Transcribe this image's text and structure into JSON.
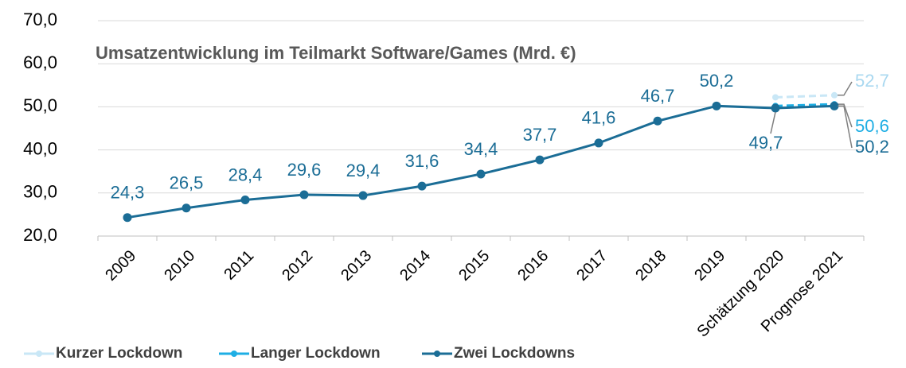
{
  "chart_data": {
    "type": "line",
    "title": "Umsatzentwicklung im Teilmarkt Software/Games (Mrd. €)",
    "categories": [
      "2009",
      "2010",
      "2011",
      "2012",
      "2013",
      "2014",
      "2015",
      "2016",
      "2017",
      "2018",
      "2019",
      "Schätzung 2020",
      "Prognose 2021"
    ],
    "series": [
      {
        "name": "Kurzer Lockdown",
        "color": "#c9e7f6",
        "dashed": true,
        "values": [
          null,
          null,
          null,
          null,
          null,
          null,
          null,
          null,
          null,
          null,
          null,
          52.2,
          52.7
        ],
        "value_labels": [
          null,
          null,
          null,
          null,
          null,
          null,
          null,
          null,
          null,
          null,
          null,
          null,
          "52,7"
        ]
      },
      {
        "name": "Langer Lockdown",
        "color": "#1eaee4",
        "dashed": true,
        "values": [
          null,
          null,
          null,
          null,
          null,
          null,
          null,
          null,
          null,
          null,
          null,
          50.2,
          50.6
        ],
        "value_labels": [
          null,
          null,
          null,
          null,
          null,
          null,
          null,
          null,
          null,
          null,
          null,
          null,
          "50,6"
        ]
      },
      {
        "name": "Zwei Lockdowns",
        "color": "#1b6d96",
        "dashed": false,
        "values": [
          24.3,
          26.5,
          28.4,
          29.6,
          29.4,
          31.6,
          34.4,
          37.7,
          41.6,
          46.7,
          50.2,
          49.7,
          50.2
        ],
        "value_labels": [
          "24,3",
          "26,5",
          "28,4",
          "29,6",
          "29,4",
          "31,6",
          "34,4",
          "37,7",
          "41,6",
          "46,7",
          "50,2",
          "49,7",
          "50,2"
        ]
      }
    ],
    "ylim": [
      20,
      70
    ],
    "yticks": [
      {
        "value": 20,
        "label": "20,0"
      },
      {
        "value": 30,
        "label": "30,0"
      },
      {
        "value": 40,
        "label": "40,0"
      },
      {
        "value": 50,
        "label": "50,0"
      },
      {
        "value": 60,
        "label": "60,0"
      },
      {
        "value": 70,
        "label": "70,0"
      }
    ],
    "grid": true,
    "legend": "bottom-left"
  }
}
